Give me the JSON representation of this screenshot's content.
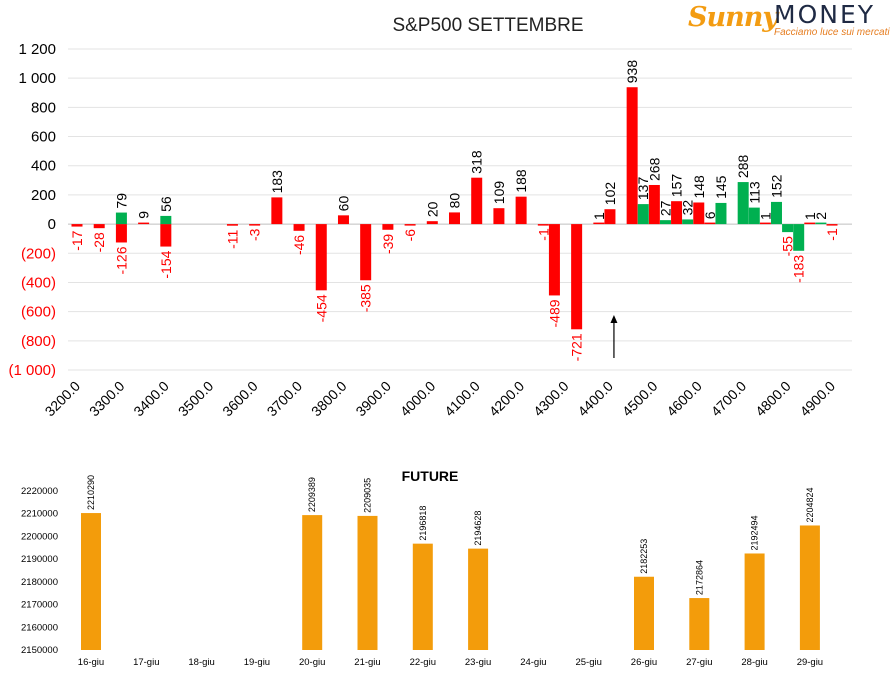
{
  "logo": {
    "brand_left": "Sunny",
    "brand_right": "MONEY",
    "tagline": "Facciamo luce sui mercati",
    "colors": {
      "sun": "#f39c12",
      "text": "#1f2a44"
    }
  },
  "chart_data": [
    {
      "type": "bar",
      "title": "S&P500 SETTEMBRE",
      "xlabel": "",
      "ylabel": "",
      "ylim": [
        -1000,
        1200
      ],
      "y_ticks": [
        1200,
        1000,
        800,
        600,
        400,
        200,
        0,
        -200,
        -400,
        -600,
        -800,
        -1000
      ],
      "y_tick_labels": [
        "1 200",
        "1 000",
        "800",
        "600",
        "400",
        "200",
        "0",
        "(200)",
        "(400)",
        "(600)",
        "(800)",
        "(1 000)"
      ],
      "x_tick_labels": [
        "3200.0",
        "3300.0",
        "3400.0",
        "3500.0",
        "3600.0",
        "3700.0",
        "3800.0",
        "3900.0",
        "4000.0",
        "4100.0",
        "4200.0",
        "4300.0",
        "4400.0",
        "4500.0",
        "4600.0",
        "4700.0",
        "4800.0",
        "4900.0"
      ],
      "grid": true,
      "legend": "none",
      "annotation": "arrow pointing up at 4400",
      "colors": {
        "red": "#ff0000",
        "green": "#00b050",
        "negative_label": "#ff0000",
        "positive_label": "#000000"
      },
      "series": [
        {
          "color": "red",
          "points": [
            {
              "x": 3200,
              "y": -17
            },
            {
              "x": 3250,
              "y": -28
            },
            {
              "x": 3300,
              "y": -126
            },
            {
              "x": 3350,
              "y": 9
            },
            {
              "x": 3400,
              "y": -154
            },
            {
              "x": 3550,
              "y": -11
            },
            {
              "x": 3600,
              "y": -3
            },
            {
              "x": 3650,
              "y": 183
            },
            {
              "x": 3700,
              "y": -46
            },
            {
              "x": 3750,
              "y": -454
            },
            {
              "x": 3800,
              "y": 60
            },
            {
              "x": 3850,
              "y": -385
            },
            {
              "x": 3900,
              "y": -39
            },
            {
              "x": 3950,
              "y": -6
            },
            {
              "x": 4000,
              "y": 20
            },
            {
              "x": 4050,
              "y": 80
            },
            {
              "x": 4100,
              "y": 318
            },
            {
              "x": 4150,
              "y": 109
            },
            {
              "x": 4200,
              "y": 188
            },
            {
              "x": 4250,
              "y": -1
            },
            {
              "x": 4275,
              "y": -489
            },
            {
              "x": 4325,
              "y": -721
            },
            {
              "x": 4375,
              "y": 1
            },
            {
              "x": 4400,
              "y": 102
            },
            {
              "x": 4450,
              "y": 938
            },
            {
              "x": 4500,
              "y": 268
            },
            {
              "x": 4550,
              "y": 157
            },
            {
              "x": 4600,
              "y": 148
            },
            {
              "x": 4625,
              "y": 6
            },
            {
              "x": 4750,
              "y": 1
            },
            {
              "x": 4850,
              "y": 1
            },
            {
              "x": 4900,
              "y": -1
            }
          ]
        },
        {
          "color": "green",
          "points": [
            {
              "x": 3300,
              "y": 79
            },
            {
              "x": 3400,
              "y": 56
            },
            {
              "x": 4475,
              "y": 137
            },
            {
              "x": 4525,
              "y": 27
            },
            {
              "x": 4575,
              "y": 32
            },
            {
              "x": 4650,
              "y": 145
            },
            {
              "x": 4700,
              "y": 288
            },
            {
              "x": 4725,
              "y": 113
            },
            {
              "x": 4775,
              "y": 152
            },
            {
              "x": 4800,
              "y": -55
            },
            {
              "x": 4825,
              "y": -183
            },
            {
              "x": 4875,
              "y": 2
            }
          ]
        }
      ]
    },
    {
      "type": "bar",
      "title": "FUTURE",
      "xlabel": "",
      "ylabel": "",
      "ylim": [
        2150000,
        2220000
      ],
      "y_ticks": [
        2150000,
        2160000,
        2170000,
        2180000,
        2190000,
        2200000,
        2210000,
        2220000
      ],
      "color": "#f39c0b",
      "categories": [
        "16-giu",
        "17-giu",
        "18-giu",
        "19-giu",
        "20-giu",
        "21-giu",
        "22-giu",
        "23-giu",
        "24-giu",
        "25-giu",
        "26-giu",
        "27-giu",
        "28-giu",
        "29-giu"
      ],
      "values": [
        2210290,
        null,
        null,
        null,
        2209389,
        2209035,
        2196818,
        2194628,
        null,
        null,
        2182253,
        2172864,
        2192494,
        2204824
      ]
    }
  ]
}
